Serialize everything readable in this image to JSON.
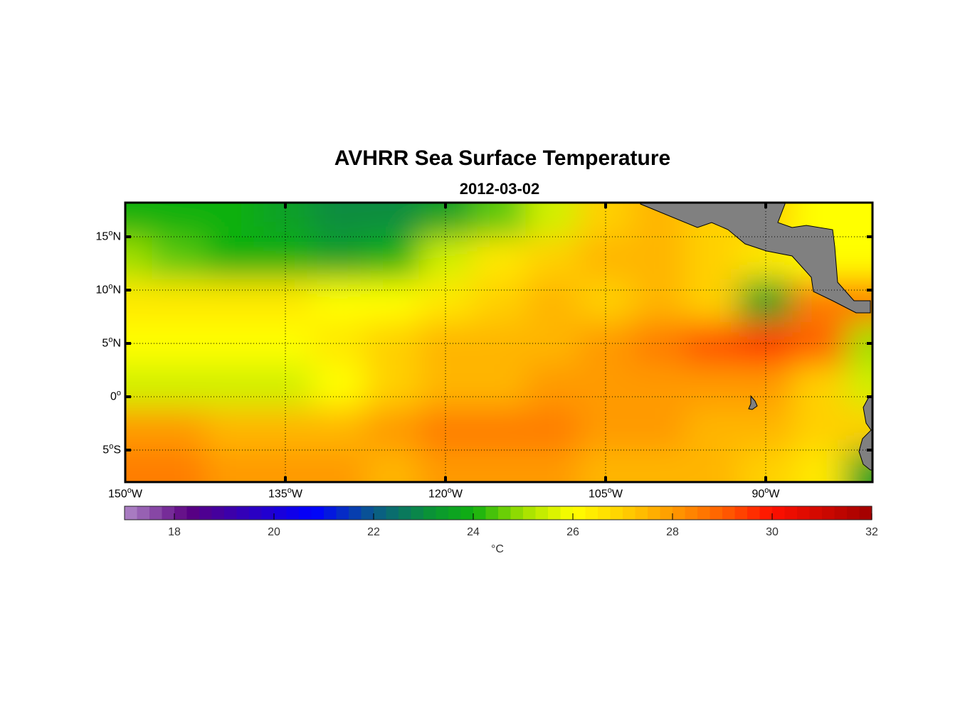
{
  "title": "AVHRR Sea Surface Temperature",
  "subtitle": "2012-03-02",
  "chart_data": {
    "type": "heatmap",
    "title": "AVHRR Sea Surface Temperature",
    "subtitle": "2012-03-02",
    "lon_range": [
      -150,
      -80
    ],
    "lat_range": [
      -8,
      18.2
    ],
    "grid_lon": [
      -150,
      -145,
      -140,
      -135,
      -130,
      -125,
      -120,
      -115,
      -110,
      -105,
      -100,
      -95,
      -90,
      -85,
      -80
    ],
    "grid_lat": [
      17,
      13,
      9,
      5,
      1,
      -3,
      -7
    ],
    "sst_c": [
      [
        24,
        24,
        24,
        23.5,
        23,
        23,
        23.5,
        24.5,
        25.5,
        27,
        27.5,
        27,
        27,
        26,
        26
      ],
      [
        25,
        24.5,
        24,
        24,
        23.5,
        24,
        25.5,
        26.5,
        27,
        27.5,
        27.5,
        27,
        26.5,
        26,
        26
      ],
      [
        26.5,
        26.5,
        26.5,
        26.5,
        26,
        26,
        26.5,
        27,
        27.5,
        27,
        27.5,
        27,
        23.5,
        28.5,
        28.5
      ],
      [
        26,
        26,
        26,
        26,
        26.5,
        27,
        27.5,
        27.5,
        27.5,
        28,
        28.5,
        29.2,
        29.5,
        29,
        25
      ],
      [
        25.5,
        25.5,
        25.5,
        25.5,
        26,
        27,
        27.5,
        27.5,
        28,
        28,
        28,
        28,
        28,
        27,
        25.5
      ],
      [
        28,
        28,
        27.5,
        27.5,
        27.5,
        28,
        28.5,
        28.5,
        28.5,
        28,
        28,
        27.5,
        27.5,
        27,
        27
      ],
      [
        28.5,
        28.5,
        28,
        28,
        28,
        27.5,
        28,
        28,
        28,
        27.5,
        27.5,
        27.5,
        27,
        26.5,
        23.5
      ]
    ],
    "y_ticks": [
      {
        "lat": 15,
        "num": "15",
        "sup": "o",
        "hem": "N"
      },
      {
        "lat": 10,
        "num": "10",
        "sup": "o",
        "hem": "N"
      },
      {
        "lat": 5,
        "num": "5",
        "sup": "o",
        "hem": "N"
      },
      {
        "lat": 0,
        "num": "0",
        "sup": "o",
        "hem": ""
      },
      {
        "lat": -5,
        "num": "5",
        "sup": "o",
        "hem": "S"
      }
    ],
    "x_ticks": [
      {
        "lon": -150,
        "num": "150",
        "sup": "o",
        "hem": "W"
      },
      {
        "lon": -135,
        "num": "135",
        "sup": "o",
        "hem": "W"
      },
      {
        "lon": -120,
        "num": "120",
        "sup": "o",
        "hem": "W"
      },
      {
        "lon": -105,
        "num": "105",
        "sup": "o",
        "hem": "W"
      },
      {
        "lon": -90,
        "num": "90",
        "sup": "o",
        "hem": "W"
      }
    ],
    "grid": true,
    "colorbar": {
      "range": [
        17,
        32
      ],
      "ticks": [
        "18",
        "20",
        "22",
        "24",
        "26",
        "28",
        "30",
        "32"
      ],
      "label": "°C",
      "placement": "bottom"
    },
    "land_color": "#808080"
  }
}
